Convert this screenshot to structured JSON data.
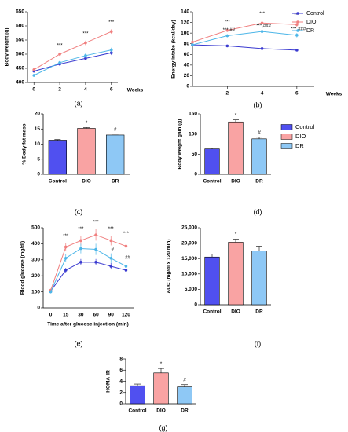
{
  "chart_data": [
    {
      "type": "line",
      "panel_label": "(a)",
      "ylabel": "Body weight (g)",
      "xlabel": "Weeks",
      "x": [
        0,
        2,
        4,
        6
      ],
      "xlim": [
        -0.5,
        6.5
      ],
      "xticks": [
        0,
        2,
        4,
        6
      ],
      "ylim": [
        400,
        650
      ],
      "yticks": [
        400,
        450,
        500,
        550,
        600,
        650
      ],
      "series": [
        {
          "name": "Control",
          "color": "#3a3ad0",
          "values": [
            440,
            465,
            485,
            505
          ],
          "errors": [
            5,
            6,
            7,
            8
          ]
        },
        {
          "name": "DIO",
          "color": "#f07f7f",
          "values": [
            445,
            500,
            540,
            580
          ],
          "errors": [
            5,
            6,
            8,
            8
          ]
        },
        {
          "name": "DR",
          "color": "#4db6e8",
          "values": [
            425,
            470,
            495,
            515
          ],
          "errors": [
            5,
            6,
            8,
            8
          ]
        }
      ],
      "annotations": [
        {
          "x": 2,
          "series": "DIO",
          "text": "***"
        },
        {
          "x": 4,
          "series": "DIO",
          "text": "***"
        },
        {
          "x": 6,
          "series": "DIO",
          "text": "***"
        }
      ]
    },
    {
      "type": "line",
      "panel_label": "(b)",
      "ylabel": "Energy intake (kcal/day)",
      "xlabel": "Weeks",
      "x": [
        0,
        2,
        4,
        6
      ],
      "xlim": [
        0,
        7
      ],
      "xticks": [
        2,
        4,
        6
      ],
      "ylim": [
        0,
        140
      ],
      "yticks": [
        0,
        20,
        40,
        60,
        80,
        100,
        120,
        140
      ],
      "legend": "top-right",
      "series": [
        {
          "name": "Control",
          "color": "#3a3ad0",
          "values": [
            78,
            76,
            71,
            68
          ],
          "errors": [
            2,
            2,
            2,
            2
          ]
        },
        {
          "name": "DIO",
          "color": "#f07f7f",
          "values": [
            83,
            105,
            119,
            116
          ],
          "errors": [
            3,
            3,
            4,
            4
          ]
        },
        {
          "name": "DR",
          "color": "#4db6e8",
          "values": [
            78,
            95,
            103,
            96
          ],
          "errors": [
            3,
            3,
            3,
            4
          ]
        }
      ],
      "annotations": [
        {
          "x": 2,
          "series": "DIO",
          "text": "***"
        },
        {
          "x": 2,
          "series": "DR",
          "text": "***,##"
        },
        {
          "x": 4,
          "series": "DIO",
          "text": "***"
        },
        {
          "x": 4,
          "series": "DR",
          "text": "***,###"
        },
        {
          "x": 6,
          "series": "DIO",
          "text": "***"
        },
        {
          "x": 6,
          "series": "DR",
          "text": "***,###"
        }
      ]
    },
    {
      "type": "bar",
      "panel_label": "(c)",
      "ylabel": "% Body fat mass",
      "categories": [
        "Control",
        "DIO",
        "DR"
      ],
      "values": [
        11.3,
        15.2,
        13.0
      ],
      "errors": [
        0.2,
        0.3,
        0.3
      ],
      "colors": [
        "#5050f0",
        "#f9a3a3",
        "#8ec8f5"
      ],
      "ylim": [
        0,
        20
      ],
      "yticks": [
        0,
        5,
        10,
        15,
        20
      ],
      "annotations": [
        {
          "category": "DIO",
          "text": "*"
        },
        {
          "category": "DR",
          "text": "#"
        }
      ]
    },
    {
      "type": "bar",
      "panel_label": "(d)",
      "ylabel": "Body weight gain (g)",
      "legend": "right",
      "categories": [
        "Control",
        "DIO",
        "DR"
      ],
      "values": [
        63,
        130,
        88
      ],
      "errors": [
        2,
        5,
        4
      ],
      "colors": [
        "#5050f0",
        "#f9a3a3",
        "#8ec8f5"
      ],
      "ylim": [
        0,
        150
      ],
      "yticks": [
        0,
        50,
        100,
        150
      ],
      "annotations": [
        {
          "category": "DIO",
          "text": "*"
        },
        {
          "category": "DR",
          "text": "#"
        }
      ]
    },
    {
      "type": "line",
      "panel_label": "(e)",
      "ylabel": "Blood glucose (mg/dl)",
      "xlabel": "Time after glucose injection (min)",
      "categories": [
        "0",
        "15",
        "30",
        "60",
        "90",
        "120"
      ],
      "ylim": [
        0,
        500
      ],
      "yticks": [
        0,
        100,
        200,
        300,
        400,
        500
      ],
      "series": [
        {
          "name": "Control",
          "color": "#3a3ad0",
          "values": [
            105,
            235,
            285,
            285,
            260,
            235
          ],
          "errors": [
            10,
            15,
            20,
            20,
            20,
            20
          ]
        },
        {
          "name": "DIO",
          "color": "#f07f7f",
          "values": [
            110,
            380,
            420,
            455,
            420,
            385
          ],
          "errors": [
            10,
            25,
            30,
            35,
            30,
            35
          ]
        },
        {
          "name": "DR",
          "color": "#4db6e8",
          "values": [
            100,
            310,
            370,
            365,
            310,
            260
          ],
          "errors": [
            10,
            25,
            30,
            35,
            30,
            30
          ]
        }
      ],
      "annotations": [
        {
          "category": "15",
          "series": "DIO",
          "text": "***"
        },
        {
          "category": "30",
          "series": "DIO",
          "text": "***"
        },
        {
          "category": "60",
          "series": "DIO",
          "text": "***"
        },
        {
          "category": "90",
          "series": "DIO",
          "text": "***"
        },
        {
          "category": "120",
          "series": "DIO",
          "text": "***"
        },
        {
          "category": "90",
          "series": "DR",
          "text": "#"
        },
        {
          "category": "120",
          "series": "DR",
          "text": "##"
        }
      ]
    },
    {
      "type": "bar",
      "panel_label": "(f)",
      "ylabel": "AUC (mg/dl x 120 min)",
      "categories": [
        "Control",
        "DIO",
        "DR"
      ],
      "values": [
        15500,
        20300,
        17500
      ],
      "errors": [
        900,
        1000,
        1500
      ],
      "colors": [
        "#5050f0",
        "#f9a3a3",
        "#8ec8f5"
      ],
      "ylim": [
        0,
        25000
      ],
      "yticks": [
        0,
        {
          "value": 5000,
          "label": "5,000"
        },
        {
          "value": 10000,
          "label": "10,000"
        },
        {
          "value": 15000,
          "label": "15,000"
        },
        {
          "value": 20000,
          "label": "20,000"
        },
        {
          "value": 25000,
          "label": "25,000"
        }
      ],
      "annotations": [
        {
          "category": "DIO",
          "text": "*"
        }
      ]
    },
    {
      "type": "bar",
      "panel_label": "(g)",
      "ylabel": "HOMA-IR",
      "categories": [
        "Control",
        "DIO",
        "DR"
      ],
      "values": [
        3.2,
        5.5,
        3.0
      ],
      "errors": [
        0.3,
        0.8,
        0.4
      ],
      "colors": [
        "#5050f0",
        "#f9a3a3",
        "#8ec8f5"
      ],
      "ylim": [
        0,
        8
      ],
      "yticks": [
        0,
        2,
        4,
        6,
        8
      ],
      "annotations": [
        {
          "category": "DIO",
          "text": "*"
        },
        {
          "category": "DR",
          "text": "#"
        }
      ]
    }
  ]
}
